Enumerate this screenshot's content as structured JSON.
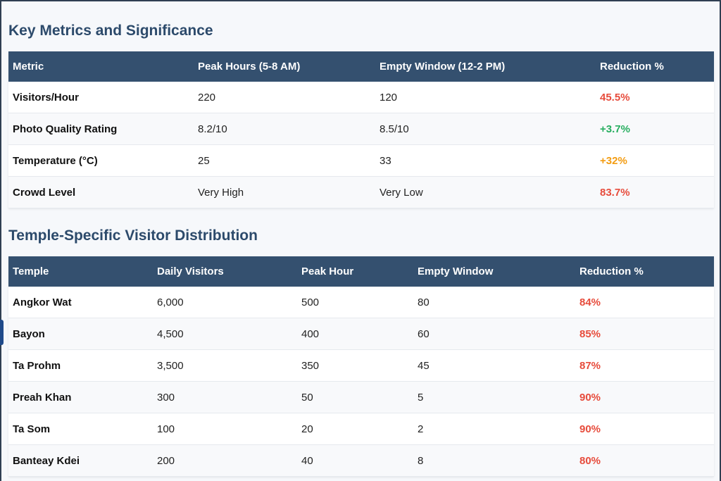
{
  "metrics": {
    "title": "Key Metrics and Significance",
    "headers": [
      "Metric",
      "Peak Hours (5-8 AM)",
      "Empty Window (12-2 PM)",
      "Reduction %"
    ],
    "rows": [
      {
        "metric": "Visitors/Hour",
        "peak": "220",
        "empty": "120",
        "reduction": "45.5%",
        "color": "#e74c3c"
      },
      {
        "metric": "Photo Quality Rating",
        "peak": "8.2/10",
        "empty": "8.5/10",
        "reduction": "+3.7%",
        "color": "#27ae60"
      },
      {
        "metric": "Temperature (°C)",
        "peak": "25",
        "empty": "33",
        "reduction": "+32%",
        "color": "#f39c12"
      },
      {
        "metric": "Crowd Level",
        "peak": "Very High",
        "empty": "Very Low",
        "reduction": "83.7%",
        "color": "#e74c3c"
      }
    ]
  },
  "temples": {
    "title": "Temple-Specific Visitor Distribution",
    "headers": [
      "Temple",
      "Daily Visitors",
      "Peak Hour",
      "Empty Window",
      "Reduction %"
    ],
    "rows": [
      {
        "temple": "Angkor Wat",
        "daily": "6,000",
        "peak": "500",
        "empty": "80",
        "reduction": "84%"
      },
      {
        "temple": "Bayon",
        "daily": "4,500",
        "peak": "400",
        "empty": "60",
        "reduction": "85%"
      },
      {
        "temple": "Ta Prohm",
        "daily": "3,500",
        "peak": "350",
        "empty": "45",
        "reduction": "87%"
      },
      {
        "temple": "Preah Khan",
        "daily": "300",
        "peak": "50",
        "empty": "5",
        "reduction": "90%"
      },
      {
        "temple": "Ta Som",
        "daily": "100",
        "peak": "20",
        "empty": "2",
        "reduction": "90%"
      },
      {
        "temple": "Banteay Kdei",
        "daily": "200",
        "peak": "40",
        "empty": "8",
        "reduction": "80%"
      }
    ]
  },
  "colors": {
    "header_bg": "#34506f",
    "title": "#2c4a6b",
    "negative": "#e74c3c",
    "positive": "#27ae60",
    "warning": "#f39c12"
  }
}
